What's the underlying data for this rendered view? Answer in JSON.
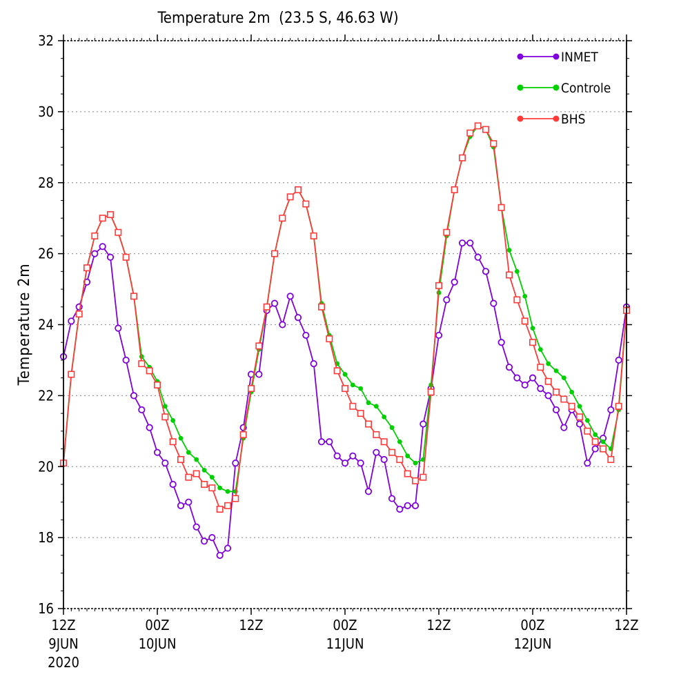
{
  "chart_data": {
    "type": "line",
    "title": "Temperature 2m  (23.5 S, 46.63 W)",
    "ylabel": "Temperature 2m",
    "xlabel": "",
    "ylim": [
      16,
      32
    ],
    "yticks": [
      16,
      18,
      20,
      22,
      24,
      26,
      28,
      30,
      32
    ],
    "xlim_hours": [
      0,
      72
    ],
    "grid": "horizontal dotted",
    "legend_position": "top-right",
    "x_ticks": [
      {
        "hour": 0,
        "lines": [
          "12Z",
          "9JUN",
          "2020"
        ]
      },
      {
        "hour": 12,
        "lines": [
          "00Z",
          "10JUN"
        ]
      },
      {
        "hour": 24,
        "lines": [
          "12Z"
        ]
      },
      {
        "hour": 36,
        "lines": [
          "00Z",
          "11JUN"
        ]
      },
      {
        "hour": 48,
        "lines": [
          "12Z"
        ]
      },
      {
        "hour": 60,
        "lines": [
          "00Z",
          "12JUN"
        ]
      },
      {
        "hour": 72,
        "lines": [
          "12Z"
        ]
      }
    ],
    "time_step_hours": 1,
    "series": [
      {
        "name": "INMET",
        "color": "#7f00dc",
        "marker": "open-circle",
        "values": [
          23.1,
          24.1,
          24.5,
          25.2,
          26.0,
          26.2,
          25.9,
          23.9,
          23.0,
          22.0,
          21.6,
          21.1,
          20.4,
          20.1,
          19.5,
          18.9,
          19.0,
          18.3,
          17.9,
          18.0,
          17.5,
          17.7,
          20.1,
          21.1,
          22.6,
          22.6,
          24.4,
          24.6,
          24.0,
          24.8,
          24.2,
          23.7,
          22.9,
          20.7,
          20.7,
          20.3,
          20.1,
          20.3,
          20.1,
          19.3,
          20.4,
          20.2,
          19.1,
          18.8,
          18.9,
          18.9,
          21.2,
          22.2,
          23.7,
          24.7,
          25.2,
          26.3,
          26.3,
          25.9,
          25.5,
          24.6,
          23.5,
          22.8,
          22.5,
          22.3,
          22.5,
          22.2,
          22.0,
          21.6,
          21.1,
          21.6,
          21.2,
          20.1,
          20.5,
          20.8,
          21.6,
          23.0,
          24.5
        ]
      },
      {
        "name": "Controle",
        "color": "#00d000",
        "marker": "filled-dot",
        "values": [
          20.1,
          22.6,
          24.3,
          25.6,
          26.5,
          27.0,
          27.1,
          26.6,
          25.9,
          24.8,
          23.1,
          22.8,
          22.4,
          21.7,
          21.3,
          20.8,
          20.4,
          20.2,
          19.9,
          19.7,
          19.4,
          19.3,
          19.3,
          20.8,
          22.1,
          23.3,
          24.5,
          26.0,
          27.0,
          27.6,
          27.8,
          27.4,
          26.5,
          24.6,
          23.7,
          22.9,
          22.6,
          22.3,
          22.2,
          21.8,
          21.7,
          21.4,
          21.1,
          20.7,
          20.3,
          20.1,
          20.2,
          22.3,
          24.9,
          26.5,
          27.8,
          28.7,
          29.3,
          29.6,
          29.5,
          29.0,
          27.3,
          26.1,
          25.5,
          24.8,
          23.9,
          23.3,
          22.9,
          22.7,
          22.5,
          22.1,
          21.7,
          21.3,
          20.9,
          20.7,
          20.5,
          21.6,
          24.4
        ]
      },
      {
        "name": "BHS",
        "color": "#ff3a3a",
        "marker": "open-square",
        "values": [
          20.1,
          22.6,
          24.3,
          25.6,
          26.5,
          27.0,
          27.1,
          26.6,
          25.9,
          24.8,
          22.9,
          22.7,
          22.3,
          21.4,
          20.7,
          20.2,
          19.7,
          19.8,
          19.5,
          19.4,
          18.8,
          18.9,
          19.1,
          20.9,
          22.2,
          23.4,
          24.5,
          26.0,
          27.0,
          27.6,
          27.8,
          27.4,
          26.5,
          24.5,
          23.6,
          22.7,
          22.2,
          21.7,
          21.5,
          21.2,
          20.9,
          20.7,
          20.4,
          20.2,
          19.8,
          19.6,
          19.7,
          22.1,
          25.1,
          26.6,
          27.8,
          28.7,
          29.4,
          29.6,
          29.5,
          29.1,
          27.3,
          25.4,
          24.7,
          24.1,
          23.5,
          22.8,
          22.4,
          22.1,
          21.9,
          21.7,
          21.4,
          21.0,
          20.7,
          20.5,
          20.2,
          21.7,
          24.4
        ]
      }
    ]
  }
}
